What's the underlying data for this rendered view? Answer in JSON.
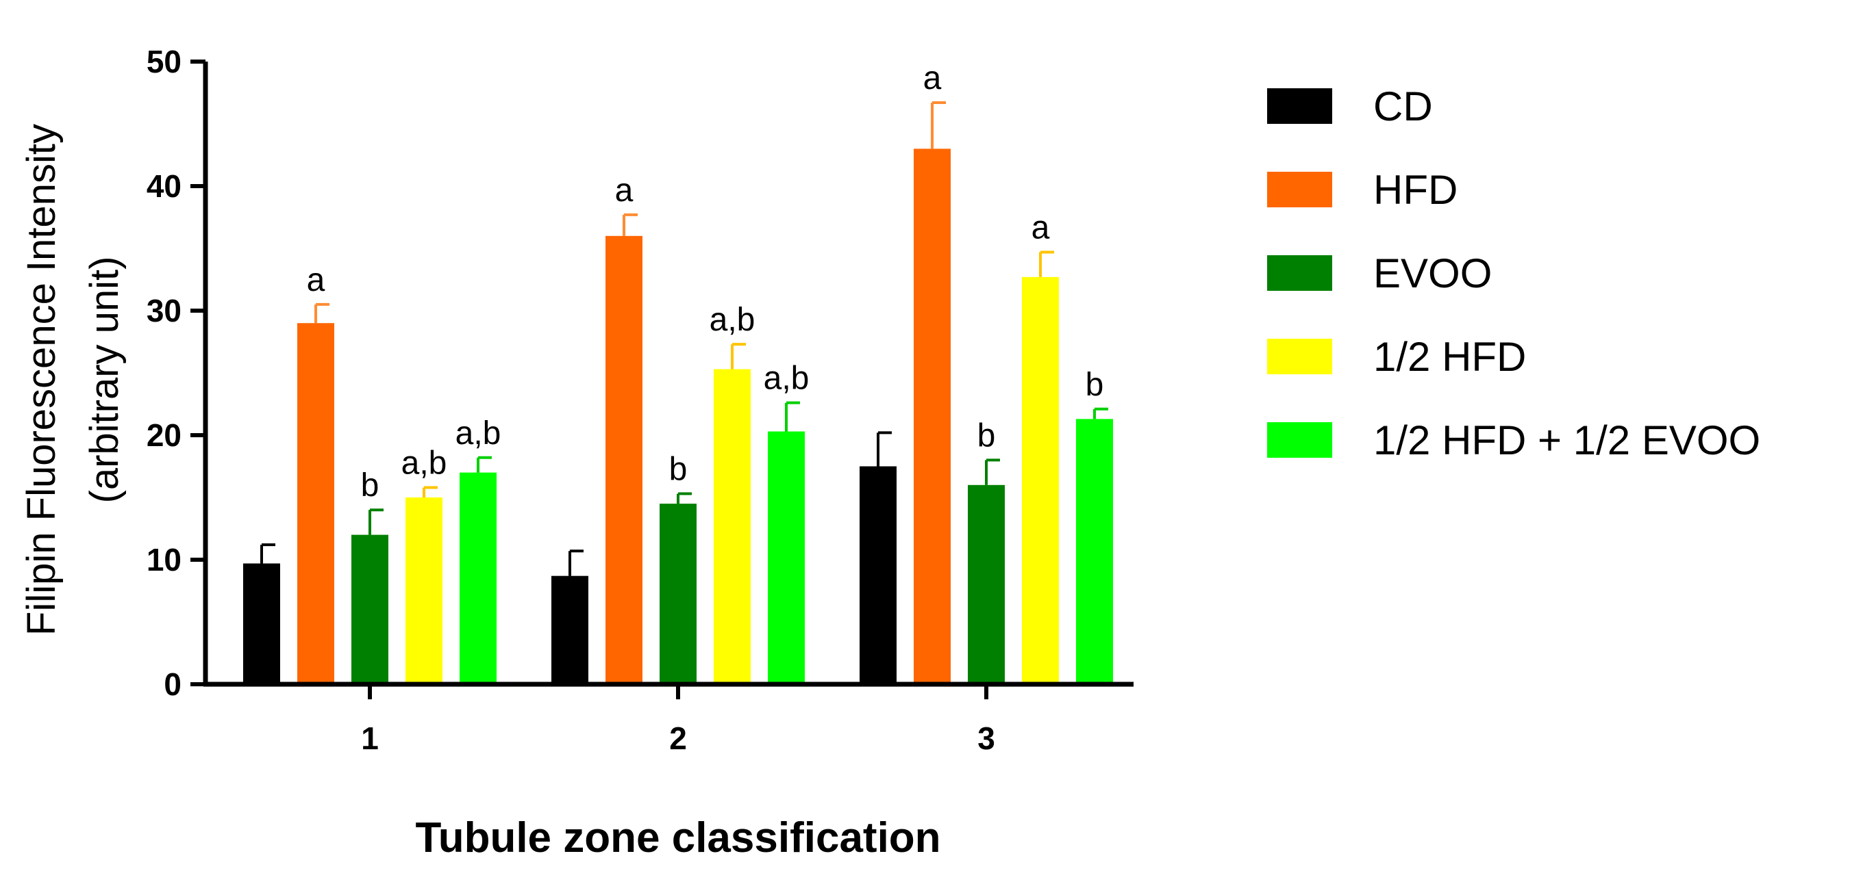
{
  "chart_data": {
    "type": "bar",
    "xlabel": "Tubule zone classification",
    "ylabel_lines": [
      "Filipin Fluorescence Intensity",
      "(arbitrary unit)"
    ],
    "categories": [
      "1",
      "2",
      "3"
    ],
    "ylim": [
      0,
      50
    ],
    "yticks": [
      "0",
      "10",
      "20",
      "30",
      "40",
      "50"
    ],
    "grid": false,
    "legend_position": "right",
    "series": [
      {
        "name": "CD",
        "color": "#000000",
        "values": [
          9.7,
          8.7,
          17.5
        ],
        "errors": [
          1.5,
          2.0,
          2.7
        ],
        "labels": [
          "",
          "",
          ""
        ]
      },
      {
        "name": "HFD",
        "color": "#ff6600",
        "values": [
          29.0,
          36.0,
          43.0
        ],
        "errors": [
          1.5,
          1.7,
          3.7
        ],
        "labels": [
          "a",
          "a",
          "a"
        ]
      },
      {
        "name": "EVOO",
        "color": "#008000",
        "values": [
          12.0,
          14.5,
          16.0
        ],
        "errors": [
          2.0,
          0.8,
          2.0
        ],
        "labels": [
          "b",
          "b",
          "b"
        ]
      },
      {
        "name": "1/2 HFD",
        "color": "#ffff00",
        "values": [
          15.0,
          25.3,
          32.7
        ],
        "errors": [
          0.8,
          2.0,
          2.0
        ],
        "labels": [
          "a,b",
          "a,b",
          "a"
        ]
      },
      {
        "name": "1/2 HFD + 1/2 EVOO",
        "color": "#00ff00",
        "values": [
          17.0,
          20.3,
          21.3
        ],
        "errors": [
          1.2,
          2.3,
          0.8
        ],
        "labels": [
          "a,b",
          "a,b",
          "b"
        ]
      }
    ]
  }
}
